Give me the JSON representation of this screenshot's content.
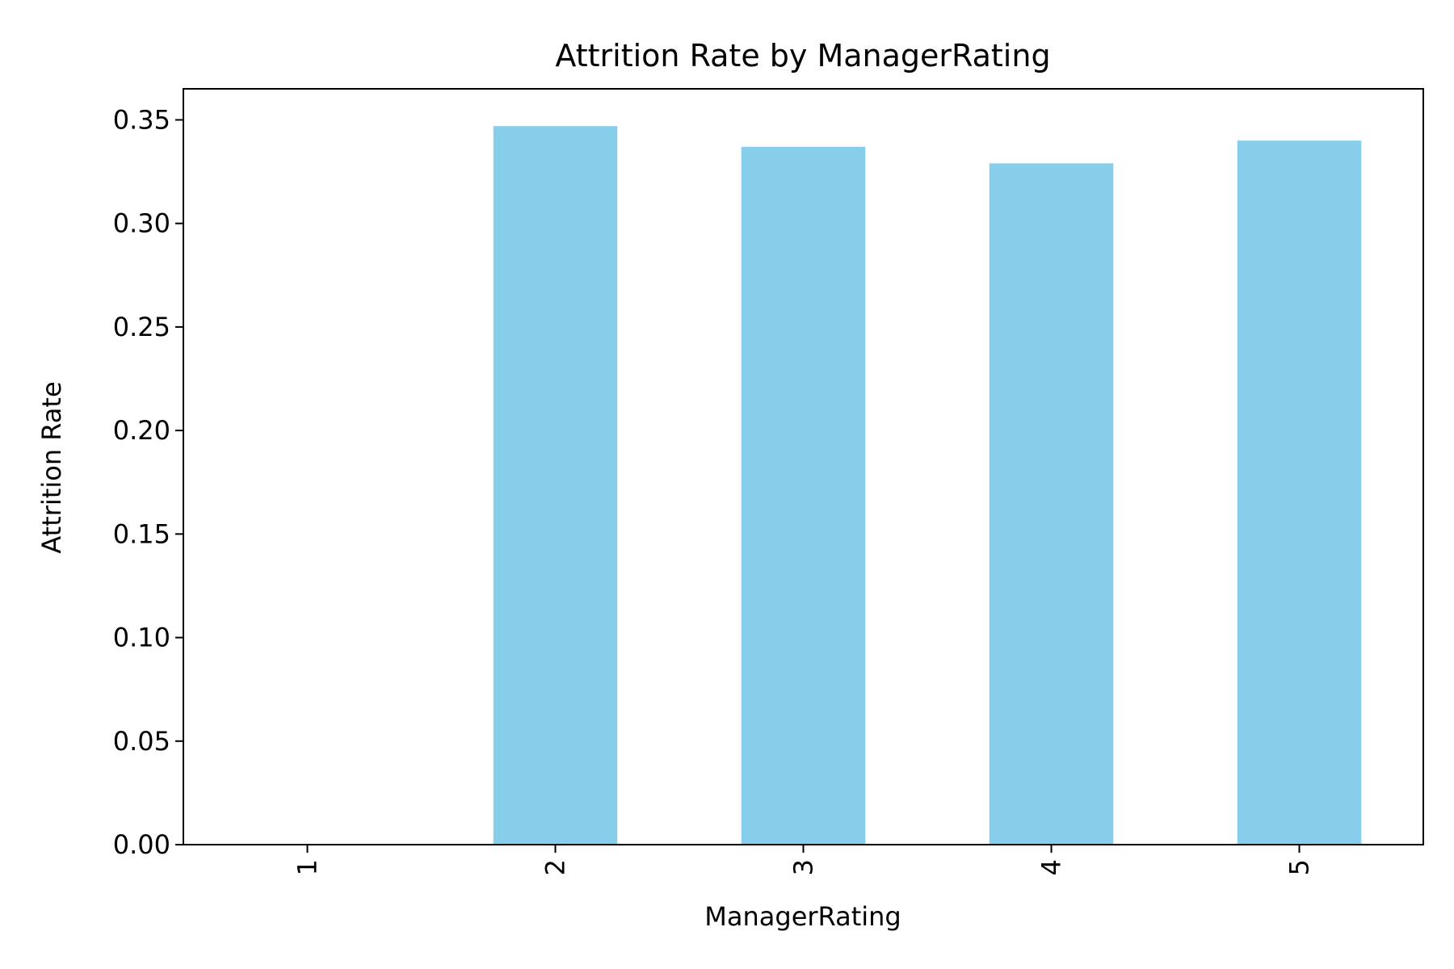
{
  "chart_data": {
    "type": "bar",
    "title": "Attrition Rate by ManagerRating",
    "xlabel": "ManagerRating",
    "ylabel": "Attrition Rate",
    "categories": [
      "1",
      "2",
      "3",
      "4",
      "5"
    ],
    "values": [
      0.0,
      0.347,
      0.337,
      0.329,
      0.34
    ],
    "ylim": [
      0,
      0.365
    ],
    "yticks": [
      "0.00",
      "0.05",
      "0.10",
      "0.15",
      "0.20",
      "0.25",
      "0.30",
      "0.35"
    ],
    "ytick_values": [
      0,
      0.05,
      0.1,
      0.15,
      0.2,
      0.25,
      0.3,
      0.35
    ],
    "grid": false,
    "legend": "none",
    "bar_color": "#87CEEB",
    "axis_color": "#000000"
  }
}
